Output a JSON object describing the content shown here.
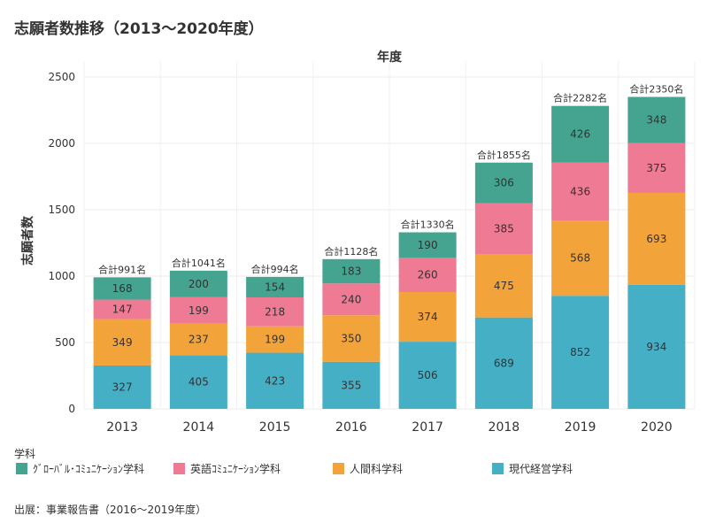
{
  "title": "志願者数推移（2013〜2020年度）",
  "source_note": "出展：事業報告書（2016〜2019年度）",
  "legend": {
    "title": "学科",
    "items": [
      {
        "label": "ｸﾞﾛｰﾊﾞﾙ･ｺﾐｭﾆｹｰｼｮﾝ学科",
        "color": "#44A490"
      },
      {
        "label": "英語ｺﾐｭﾆｹｰｼｮﾝ学科",
        "color": "#EE7A93"
      },
      {
        "label": "人間科学科",
        "color": "#F2A33A"
      },
      {
        "label": "現代経営学科",
        "color": "#45AFC6"
      }
    ]
  },
  "chart_data": {
    "type": "bar",
    "stacked": true,
    "x_header": "年度",
    "ylabel": "志願者数",
    "ylim": [
      0,
      2500
    ],
    "yticks": [
      0,
      500,
      1000,
      1500,
      2000,
      2500
    ],
    "grid": true,
    "legend_position": "bottom",
    "categories": [
      "2013",
      "2014",
      "2015",
      "2016",
      "2017",
      "2018",
      "2019",
      "2020"
    ],
    "series": [
      {
        "name": "現代経営学科",
        "color": "#45AFC6",
        "values": [
          327,
          405,
          423,
          355,
          506,
          689,
          852,
          934
        ]
      },
      {
        "name": "人間科学科",
        "color": "#F2A33A",
        "values": [
          349,
          237,
          199,
          350,
          374,
          475,
          568,
          693
        ]
      },
      {
        "name": "英語ｺﾐｭﾆｹｰｼｮﾝ学科",
        "color": "#EE7A93",
        "values": [
          147,
          199,
          218,
          240,
          260,
          385,
          436,
          375
        ]
      },
      {
        "name": "ｸﾞﾛｰﾊﾞﾙ･ｺﾐｭﾆｹｰｼｮﾝ学科",
        "color": "#44A490",
        "values": [
          168,
          200,
          154,
          183,
          190,
          306,
          426,
          348
        ]
      }
    ],
    "total_labels": [
      "合計991名",
      "合計1041名",
      "合計994名",
      "合計1128名",
      "合計1330名",
      "合計1855名",
      "合計2282名",
      "合計2350名"
    ]
  }
}
